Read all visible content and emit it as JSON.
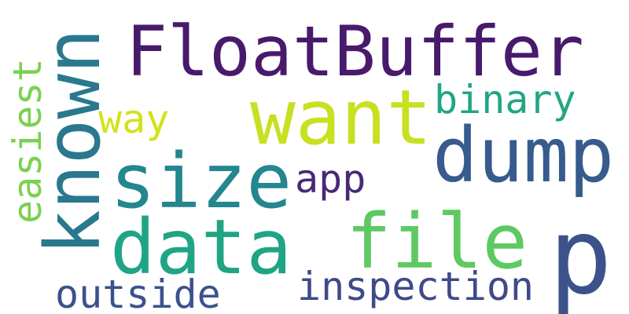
{
  "words": {
    "floatbuffer": {
      "text": "FloatBuffer",
      "color": "#481a6c"
    },
    "want": {
      "text": "want",
      "color": "#c8e020"
    },
    "binary": {
      "text": "binary",
      "color": "#21a585"
    },
    "way": {
      "text": "way",
      "color": "#d2e21b"
    },
    "dump": {
      "text": "dump",
      "color": "#375b8d"
    },
    "size": {
      "text": "size",
      "color": "#24868e"
    },
    "app": {
      "text": "app",
      "color": "#482878"
    },
    "data": {
      "text": "data",
      "color": "#20a486"
    },
    "file": {
      "text": "file",
      "color": "#5ec962"
    },
    "p": {
      "text": "p",
      "color": "#3b528b"
    },
    "inspection": {
      "text": "inspection",
      "color": "#3e4a89"
    },
    "outside": {
      "text": "outside",
      "color": "#3b528b"
    },
    "known": {
      "text": "known",
      "color": "#2a788e"
    },
    "easiest": {
      "text": "easiest",
      "color": "#7ad151"
    }
  }
}
